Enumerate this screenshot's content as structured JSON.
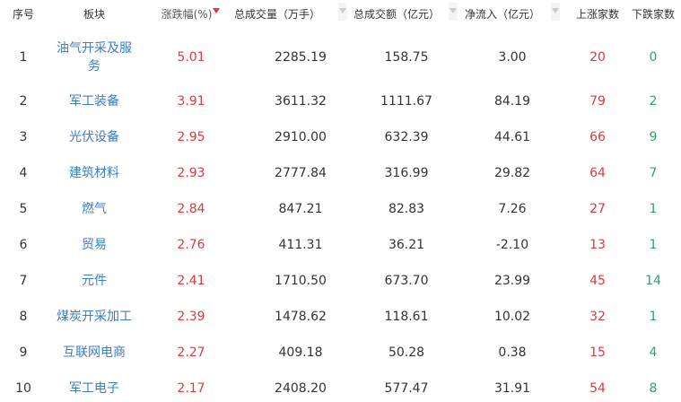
{
  "headers": [
    "序号",
    "板块",
    "涨跌幅(%)",
    "总成交量（万手）",
    "总成交额（亿元）",
    "净流入（亿元）",
    "上涨家数",
    "下跌家数"
  ],
  "sort": {
    "column": "涨跌幅(%)",
    "direction": "desc",
    "active_color": "#e33333"
  },
  "colors": {
    "name": "#3a7dc9",
    "up": "#e0383a",
    "down": "#2aa66a"
  },
  "rows": [
    {
      "rank": "1",
      "name": "油气开采及服务",
      "name_l1": "油气开采及服",
      "name_l2": "务",
      "change": "5.01",
      "volume": "2285.19",
      "amount": "158.75",
      "inflow": "3.00",
      "up": "20",
      "down": "0"
    },
    {
      "rank": "2",
      "name": "军工装备",
      "change": "3.91",
      "volume": "3611.32",
      "amount": "1111.67",
      "inflow": "84.19",
      "up": "79",
      "down": "2"
    },
    {
      "rank": "3",
      "name": "光伏设备",
      "change": "2.95",
      "volume": "2910.00",
      "amount": "632.39",
      "inflow": "44.61",
      "up": "66",
      "down": "9"
    },
    {
      "rank": "4",
      "name": "建筑材料",
      "change": "2.93",
      "volume": "2777.84",
      "amount": "316.99",
      "inflow": "29.82",
      "up": "64",
      "down": "7"
    },
    {
      "rank": "5",
      "name": "燃气",
      "change": "2.84",
      "volume": "847.21",
      "amount": "82.83",
      "inflow": "7.26",
      "up": "27",
      "down": "1"
    },
    {
      "rank": "6",
      "name": "贸易",
      "change": "2.76",
      "volume": "411.31",
      "amount": "36.21",
      "inflow": "-2.10",
      "up": "13",
      "down": "1"
    },
    {
      "rank": "7",
      "name": "元件",
      "change": "2.41",
      "volume": "1710.50",
      "amount": "673.70",
      "inflow": "23.99",
      "up": "45",
      "down": "14"
    },
    {
      "rank": "8",
      "name": "煤炭开采加工",
      "change": "2.39",
      "volume": "1478.62",
      "amount": "118.61",
      "inflow": "10.02",
      "up": "32",
      "down": "1"
    },
    {
      "rank": "9",
      "name": "互联网电商",
      "change": "2.27",
      "volume": "409.18",
      "amount": "50.28",
      "inflow": "0.38",
      "up": "15",
      "down": "4"
    },
    {
      "rank": "10",
      "name": "军工电子",
      "change": "2.17",
      "volume": "2408.20",
      "amount": "577.47",
      "inflow": "31.91",
      "up": "54",
      "down": "8"
    }
  ]
}
